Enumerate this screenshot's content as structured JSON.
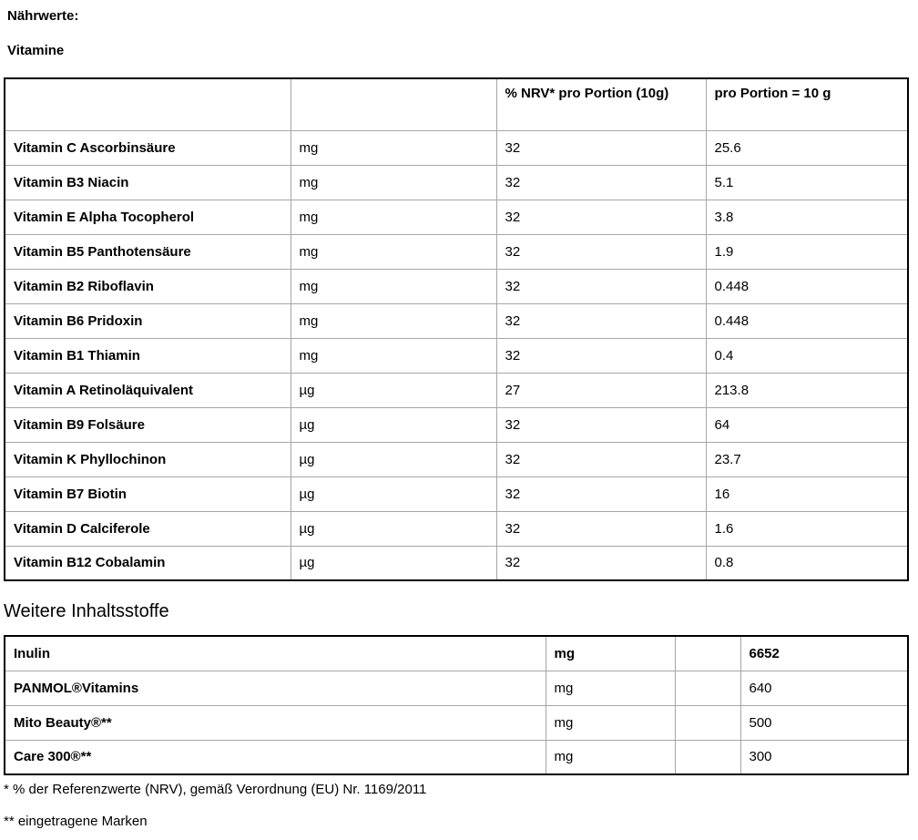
{
  "colors": {
    "text": "#000000",
    "table_outer_border": "#000000",
    "table_grid_lines": "#a6a6a6"
  },
  "page": {
    "heading1": "Nährwerte:",
    "heading2": "Vitamine",
    "section2_heading": "Weitere Inhaltsstoffe",
    "footnote1": "* % der Referenzwerte (NRV), gemäß Verordnung (EU) Nr. 1169/2011",
    "footnote2": "** eingetragene Marken"
  },
  "vitamin_table": {
    "header": {
      "col1": "",
      "col2": "",
      "nrv": "% NRV* pro Portion (10g)",
      "portion": "pro Portion\n= 10 g"
    },
    "rows": [
      {
        "name": "Vitamin C Ascorbinsäure",
        "unit": "mg",
        "nrv": "32",
        "amount": "25.6"
      },
      {
        "name": "Vitamin B3 Niacin",
        "unit": "mg",
        "nrv": "32",
        "amount": "5.1"
      },
      {
        "name": "Vitamin E Alpha Tocopherol",
        "unit": "mg",
        "nrv": "32",
        "amount": "3.8"
      },
      {
        "name": "Vitamin B5 Panthotensäure",
        "unit": "mg",
        "nrv": "32",
        "amount": "1.9"
      },
      {
        "name": "Vitamin B2 Riboflavin",
        "unit": "mg",
        "nrv": "32",
        "amount": "0.448"
      },
      {
        "name": "Vitamin B6 Pridoxin",
        "unit": "mg",
        "nrv": "32",
        "amount": "0.448"
      },
      {
        "name": "Vitamin B1 Thiamin",
        "unit": "mg",
        "nrv": "32",
        "amount": "0.4"
      },
      {
        "name": "Vitamin A Retinoläquivalent",
        "unit": "µg",
        "nrv": "27",
        "amount": "213.8"
      },
      {
        "name": "Vitamin B9 Folsäure",
        "unit": "µg",
        "nrv": "32",
        "amount": "64"
      },
      {
        "name": "Vitamin K Phyllochinon",
        "unit": "µg",
        "nrv": "32",
        "amount": "23.7"
      },
      {
        "name": "Vitamin B7 Biotin",
        "unit": "µg",
        "nrv": "32",
        "amount": "16"
      },
      {
        "name": "Vitamin D Calciferole",
        "unit": "µg",
        "nrv": "32",
        "amount": "1.6"
      },
      {
        "name": "Vitamin B12 Cobalamin",
        "unit": "µg",
        "nrv": "32",
        "amount": "0.8"
      }
    ]
  },
  "ingredients_table": {
    "rows": [
      {
        "name": "Inulin",
        "unit": "mg",
        "spacer": "",
        "amount": "6652",
        "bold": true
      },
      {
        "name": "PANMOL®Vitamins",
        "unit": "mg",
        "spacer": "",
        "amount": "640",
        "bold": false
      },
      {
        "name": "Mito Beauty®**",
        "unit": "mg",
        "spacer": "",
        "amount": "500",
        "bold": false
      },
      {
        "name": "Care 300®**",
        "unit": "mg",
        "spacer": "",
        "amount": "300",
        "bold": false
      }
    ]
  }
}
